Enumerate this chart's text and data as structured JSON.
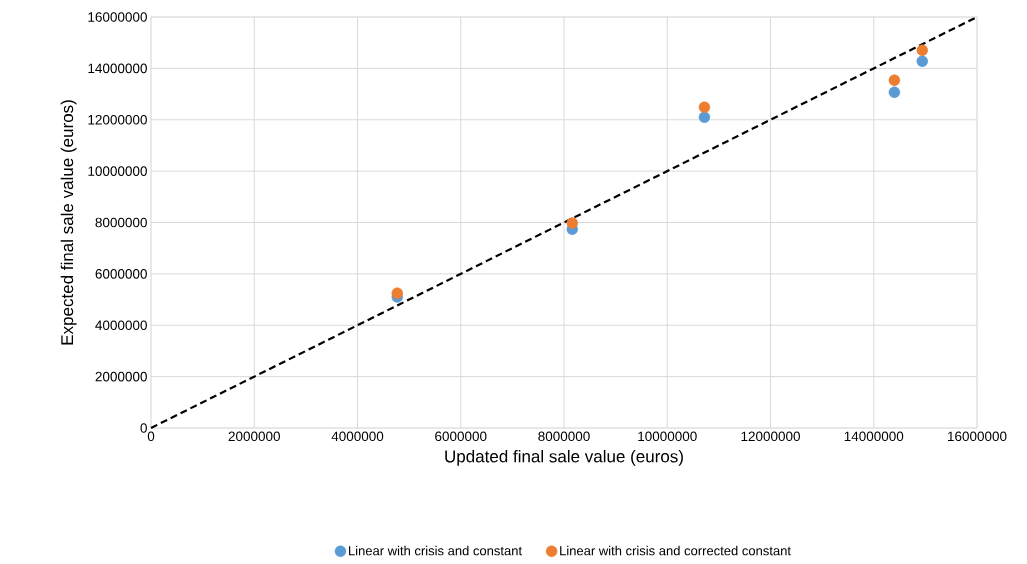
{
  "chart_data": {
    "type": "scatter",
    "xlabel": "Updated final sale value (euros)",
    "ylabel": "Expected final sale value (euros)",
    "x": [
      4770000,
      8160000,
      10720000,
      14400000,
      14940000
    ],
    "series": [
      {
        "name": "Linear with crisis and constant",
        "color": "#5b9bd5",
        "values": [
          5100000,
          7740000,
          12100000,
          13070000,
          14280000
        ]
      },
      {
        "name": "Linear with crisis and corrected constant",
        "color": "#ed7d31",
        "values": [
          5250000,
          7980000,
          12490000,
          13540000,
          14710000
        ]
      },
      {
        "type": "line",
        "color": "#000000",
        "line_style": "dashed",
        "marker": "none",
        "x": [
          0,
          16000000
        ],
        "values": [
          0,
          16000000
        ]
      }
    ],
    "marker": "circle",
    "grid": true,
    "legend": "bottom",
    "xlim": [
      0,
      16000000
    ],
    "ylim": [
      0,
      16000000
    ],
    "xticks": [
      0,
      2000000,
      4000000,
      6000000,
      8000000,
      10000000,
      12000000,
      14000000,
      16000000
    ],
    "yticks": [
      0,
      2000000,
      4000000,
      6000000,
      8000000,
      10000000,
      12000000,
      14000000,
      16000000
    ]
  }
}
